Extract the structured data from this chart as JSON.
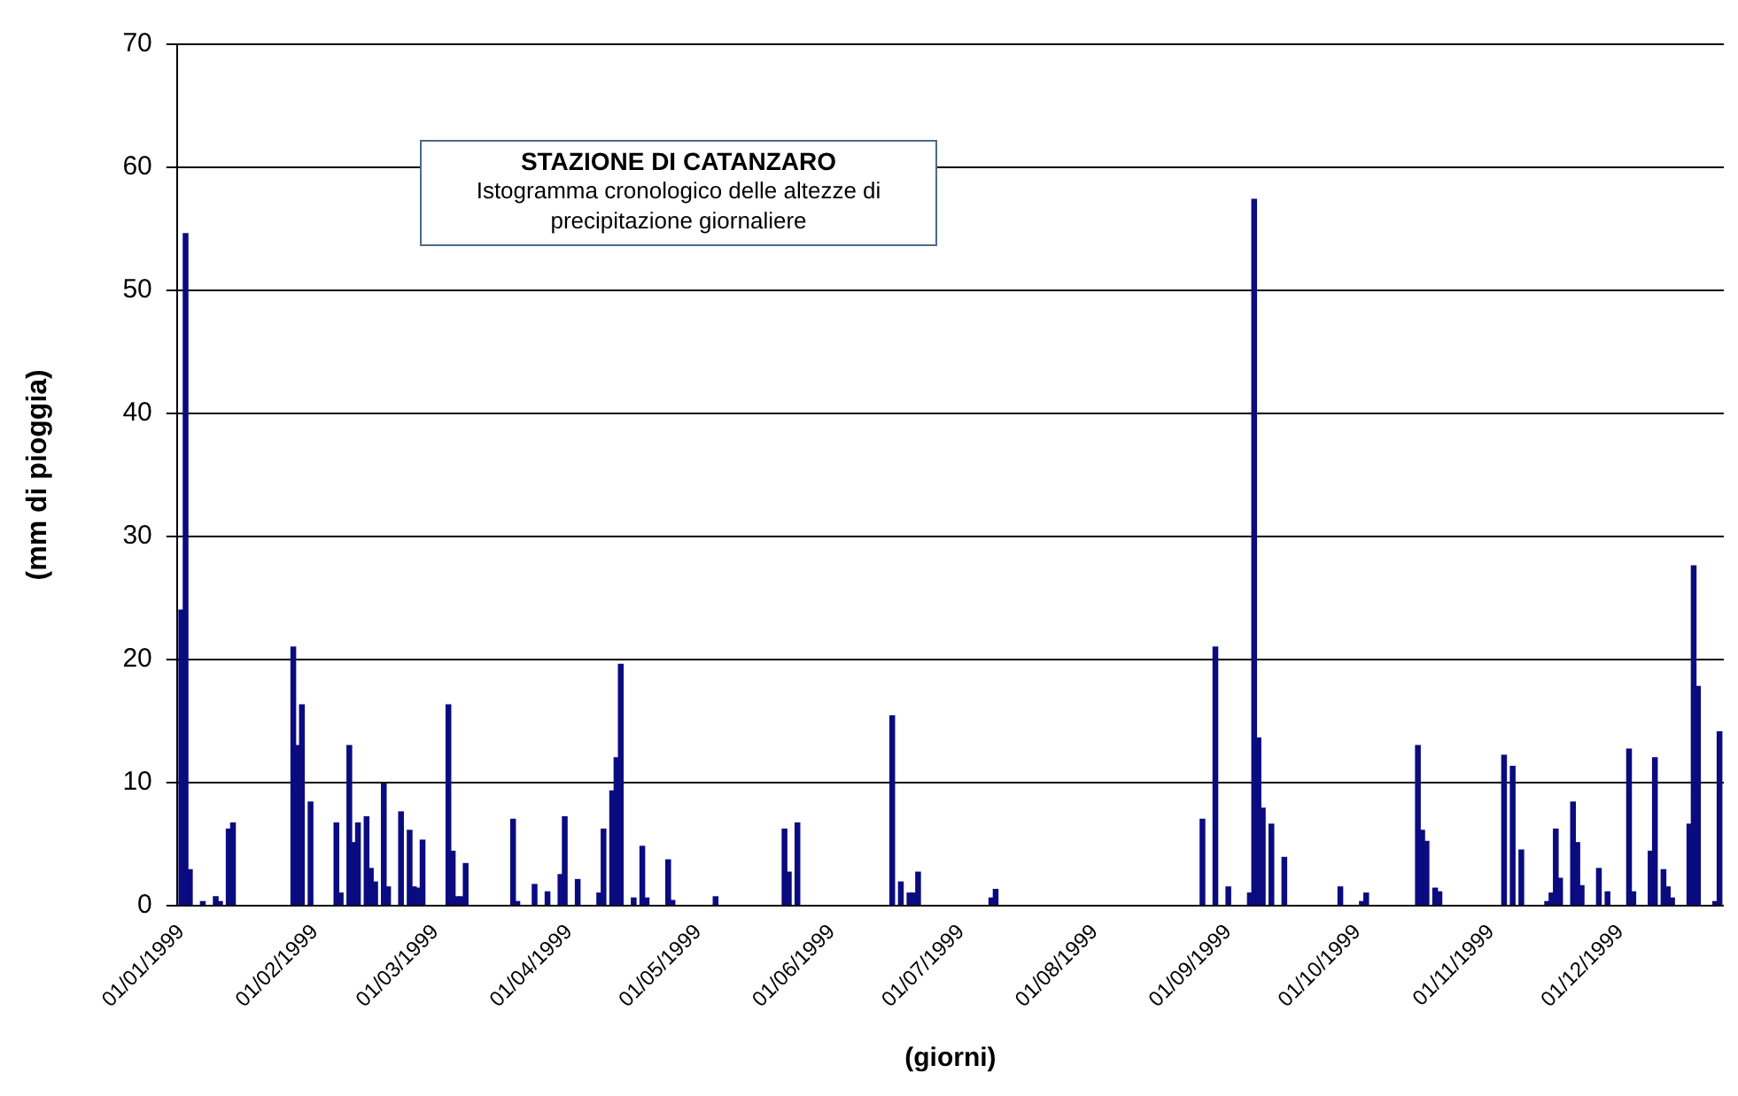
{
  "chart_data": {
    "type": "bar",
    "title": "STAZIONE DI CATANZARO",
    "subtitle": "Istogramma cronologico delle altezze di precipitazione giornaliere",
    "xlabel": "(giorni)",
    "ylabel": "(mm di pioggia)",
    "x": [
      "1999-01-01",
      "1999-01-02",
      "1999-01-03",
      "1999-01-06",
      "1999-01-09",
      "1999-01-10",
      "1999-01-12",
      "1999-01-13",
      "1999-01-27",
      "1999-01-28",
      "1999-01-29",
      "1999-01-31",
      "1999-02-06",
      "1999-02-07",
      "1999-02-09",
      "1999-02-10",
      "1999-02-11",
      "1999-02-13",
      "1999-02-14",
      "1999-02-15",
      "1999-02-17",
      "1999-02-18",
      "1999-02-21",
      "1999-02-23",
      "1999-02-24",
      "1999-02-25",
      "1999-02-26",
      "1999-03-04",
      "1999-03-05",
      "1999-03-06",
      "1999-03-07",
      "1999-03-08",
      "1999-03-19",
      "1999-03-20",
      "1999-03-24",
      "1999-03-27",
      "1999-03-30",
      "1999-03-31",
      "1999-04-03",
      "1999-04-08",
      "1999-04-09",
      "1999-04-11",
      "1999-04-12",
      "1999-04-13",
      "1999-04-16",
      "1999-04-18",
      "1999-04-19",
      "1999-04-24",
      "1999-04-25",
      "1999-05-05",
      "1999-05-21",
      "1999-05-22",
      "1999-05-24",
      "1999-06-15",
      "1999-06-17",
      "1999-06-19",
      "1999-06-20",
      "1999-06-21",
      "1999-07-08",
      "1999-07-09",
      "1999-08-26",
      "1999-08-29",
      "1999-09-01",
      "1999-09-06",
      "1999-09-07",
      "1999-09-08",
      "1999-09-09",
      "1999-09-11",
      "1999-09-14",
      "1999-09-27",
      "1999-10-02",
      "1999-10-03",
      "1999-10-15",
      "1999-10-16",
      "1999-10-17",
      "1999-10-19",
      "1999-10-20",
      "1999-11-04",
      "1999-11-06",
      "1999-11-08",
      "1999-11-14",
      "1999-11-15",
      "1999-11-16",
      "1999-11-17",
      "1999-11-20",
      "1999-11-21",
      "1999-11-22",
      "1999-11-26",
      "1999-11-28",
      "1999-12-03",
      "1999-12-04",
      "1999-12-08",
      "1999-12-09",
      "1999-12-11",
      "1999-12-12",
      "1999-12-13",
      "1999-12-17",
      "1999-12-18",
      "1999-12-19",
      "1999-12-23",
      "1999-12-24"
    ],
    "values": [
      24,
      54.6,
      2.9,
      0.3,
      0.7,
      0.3,
      6.2,
      6.7,
      21,
      13,
      16.3,
      8.4,
      6.7,
      1,
      13,
      5.1,
      6.7,
      7.2,
      3,
      1.9,
      9.9,
      1.5,
      7.6,
      6.1,
      1.5,
      1.4,
      5.3,
      16.3,
      4.4,
      0.7,
      0.7,
      3.4,
      7,
      0.3,
      1.7,
      1.1,
      2.5,
      7.2,
      2.1,
      1,
      6.2,
      9.3,
      12,
      19.6,
      0.6,
      4.8,
      0.6,
      3.7,
      0.4,
      0.7,
      6.2,
      2.7,
      6.7,
      15.4,
      1.9,
      1,
      1,
      2.7,
      0.6,
      1.3,
      7,
      21,
      1.5,
      1,
      57.4,
      13.6,
      7.9,
      6.6,
      3.9,
      1.5,
      0.3,
      1,
      13,
      6.1,
      5.2,
      1.4,
      1.1,
      12.2,
      11.3,
      4.5,
      0.3,
      1,
      6.2,
      2.2,
      8.4,
      5.1,
      1.6,
      3,
      1.1,
      12.7,
      1.1,
      4.4,
      12,
      2.9,
      1.5,
      0.6,
      6.6,
      27.6,
      17.8,
      0.3,
      14.1
    ],
    "color": "#0b0b80",
    "xlim": [
      "1998-12-31",
      "1999-12-25"
    ],
    "xticks": [
      {
        "value": "1999-01-01",
        "label": "01/01/1999"
      },
      {
        "value": "1999-02-01",
        "label": "01/02/1999"
      },
      {
        "value": "1999-03-01",
        "label": "01/03/1999"
      },
      {
        "value": "1999-04-01",
        "label": "01/04/1999"
      },
      {
        "value": "1999-05-01",
        "label": "01/05/1999"
      },
      {
        "value": "1999-06-01",
        "label": "01/06/1999"
      },
      {
        "value": "1999-07-01",
        "label": "01/07/1999"
      },
      {
        "value": "1999-08-01",
        "label": "01/08/1999"
      },
      {
        "value": "1999-09-01",
        "label": "01/09/1999"
      },
      {
        "value": "1999-10-01",
        "label": "01/10/1999"
      },
      {
        "value": "1999-11-01",
        "label": "01/11/1999"
      },
      {
        "value": "1999-12-01",
        "label": "01/12/1999"
      }
    ],
    "ylim": [
      0,
      70
    ],
    "yticks": [
      0,
      10,
      20,
      30,
      40,
      50,
      60,
      70
    ],
    "grid": "y",
    "legend": false
  }
}
